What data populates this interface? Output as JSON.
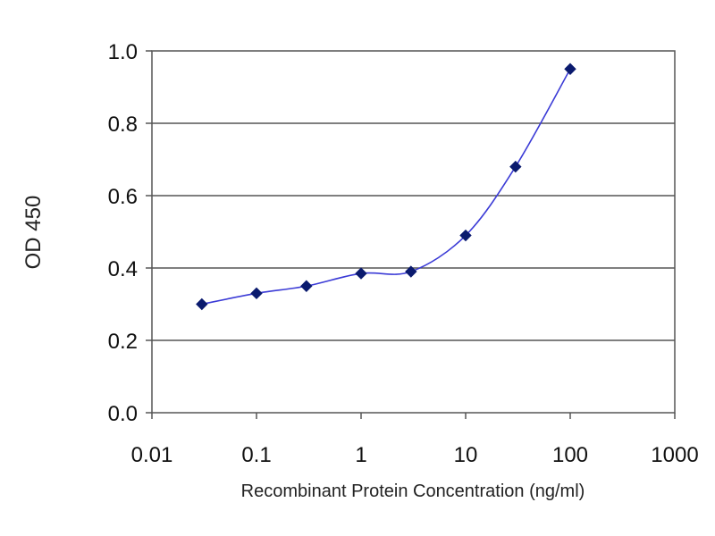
{
  "chart_data": {
    "type": "line",
    "xscale": "log",
    "x": [
      0.03,
      0.1,
      0.3,
      1,
      3,
      10,
      30,
      100
    ],
    "series": [
      {
        "values": [
          0.3,
          0.33,
          0.35,
          0.385,
          0.39,
          0.49,
          0.68,
          0.95
        ]
      }
    ],
    "xlabel": "Recombinant Protein Concentration (ng/ml)",
    "ylabel": "OD 450",
    "xlim": [
      0.01,
      1000
    ],
    "ylim": [
      0.0,
      1.0
    ],
    "xticks": [
      0.01,
      0.1,
      1,
      10,
      100,
      1000
    ],
    "xtick_labels": [
      "0.01",
      "0.1",
      "1",
      "10",
      "100",
      "1000"
    ],
    "yticks": [
      0.0,
      0.2,
      0.4,
      0.6,
      0.8,
      1.0
    ],
    "ytick_labels": [
      "0.0",
      "0.2",
      "0.4",
      "0.6",
      "0.8",
      "1.0"
    ],
    "grid": "horizontal",
    "line_color": "#3b3bd6",
    "marker_color": "#0a1a6e",
    "marker": "diamond"
  }
}
